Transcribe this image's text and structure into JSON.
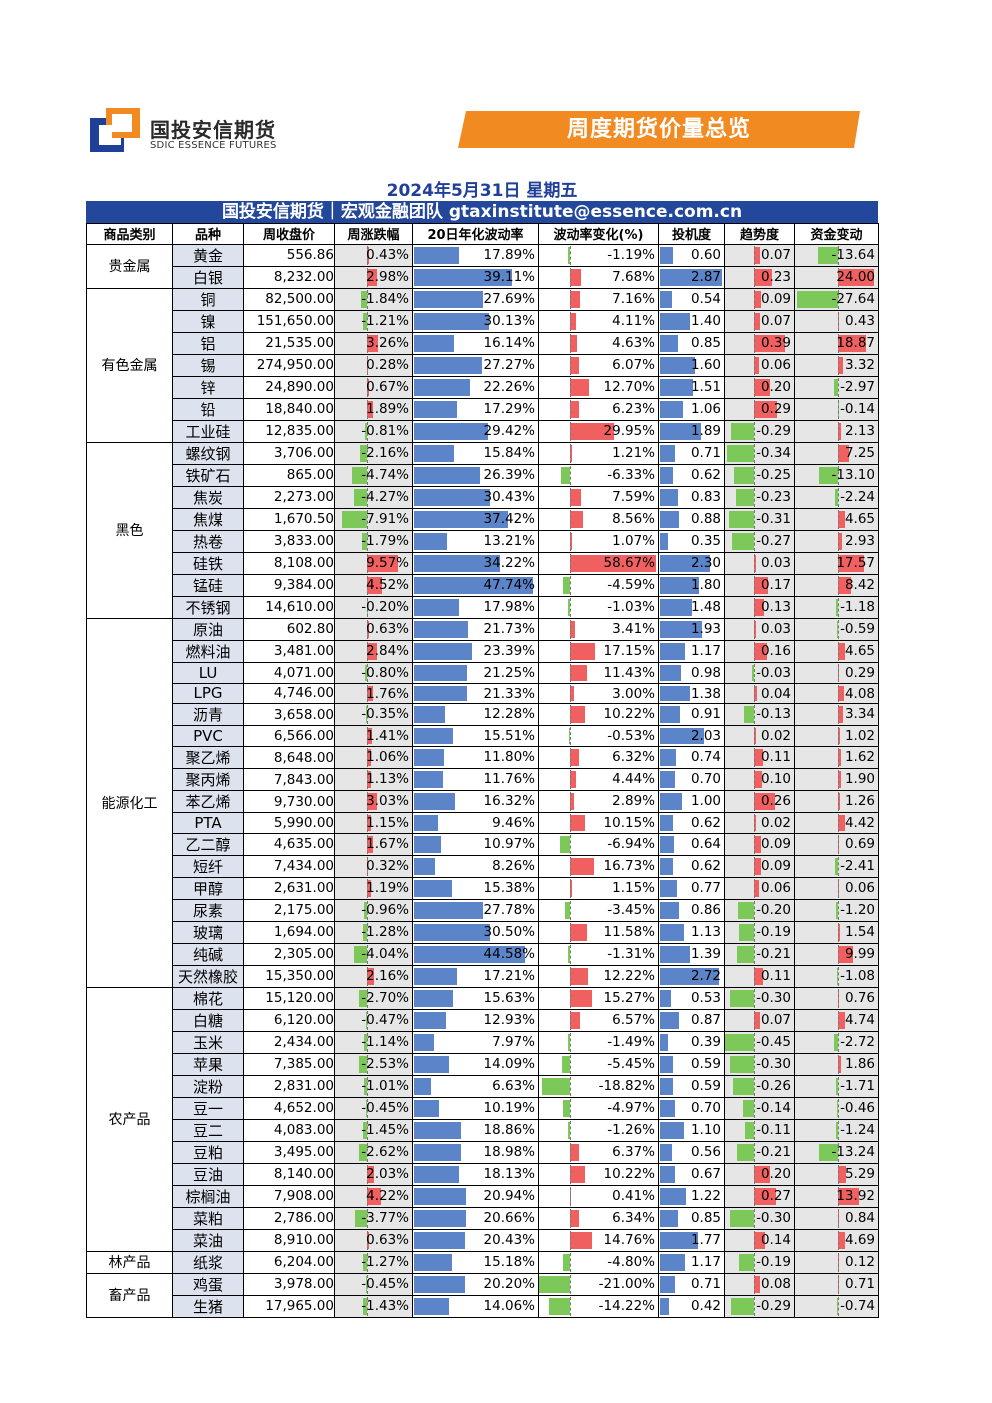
{
  "header": {
    "logo_text": "国投安信期货",
    "logo_sub": "SDIC ESSENCE FUTURES",
    "banner": "周度期货价量总览",
    "date": "2024年5月31日 星期五",
    "team": "国投安信期货｜宏观金融团队 gtaxinstitute@essence.com.cn"
  },
  "colors": {
    "brand_blue": "#23479b",
    "banner_orange": "#f18a21",
    "bar_blue": "#5b85c8",
    "bar_red": "#f06060",
    "bar_green": "#7cc95a"
  },
  "table": {
    "headers": [
      "商品类别",
      "品种",
      "周收盘价",
      "周涨跌幅",
      "20日年化波动率",
      "波动率变化(%)",
      "投机度",
      "趋势度",
      "资金变动"
    ],
    "categories": [
      {
        "name": "贵金属",
        "rows": [
          {
            "name": "黄金",
            "price": "556.86",
            "chg": "0.43%",
            "vol": "17.89%",
            "volchg": "-1.19%",
            "spec": "0.60",
            "trend": "0.07",
            "fund": "-13.64"
          },
          {
            "name": "白银",
            "price": "8,232.00",
            "chg": "2.98%",
            "vol": "39.11%",
            "volchg": "7.68%",
            "spec": "2.87",
            "trend": "0.23",
            "fund": "24.00"
          }
        ]
      },
      {
        "name": "有色金属",
        "rows": [
          {
            "name": "铜",
            "price": "82,500.00",
            "chg": "-1.84%",
            "vol": "27.69%",
            "volchg": "7.16%",
            "spec": "0.54",
            "trend": "0.09",
            "fund": "-27.64"
          },
          {
            "name": "镍",
            "price": "151,650.00",
            "chg": "-1.21%",
            "vol": "30.13%",
            "volchg": "4.11%",
            "spec": "1.40",
            "trend": "0.07",
            "fund": "0.43"
          },
          {
            "name": "铝",
            "price": "21,535.00",
            "chg": "3.26%",
            "vol": "16.14%",
            "volchg": "4.63%",
            "spec": "0.85",
            "trend": "0.39",
            "fund": "18.87"
          },
          {
            "name": "锡",
            "price": "274,950.00",
            "chg": "0.28%",
            "vol": "27.27%",
            "volchg": "6.07%",
            "spec": "1.60",
            "trend": "0.06",
            "fund": "3.32"
          },
          {
            "name": "锌",
            "price": "24,890.00",
            "chg": "0.67%",
            "vol": "22.26%",
            "volchg": "12.70%",
            "spec": "1.51",
            "trend": "0.20",
            "fund": "-2.97"
          },
          {
            "name": "铅",
            "price": "18,840.00",
            "chg": "1.89%",
            "vol": "17.29%",
            "volchg": "6.23%",
            "spec": "1.06",
            "trend": "0.29",
            "fund": "-0.14"
          },
          {
            "name": "工业硅",
            "price": "12,835.00",
            "chg": "-0.81%",
            "vol": "29.42%",
            "volchg": "29.95%",
            "spec": "1.89",
            "trend": "-0.29",
            "fund": "2.13"
          }
        ]
      },
      {
        "name": "黑色",
        "rows": [
          {
            "name": "螺纹钢",
            "price": "3,706.00",
            "chg": "-2.16%",
            "vol": "15.84%",
            "volchg": "1.21%",
            "spec": "0.71",
            "trend": "-0.34",
            "fund": "7.25"
          },
          {
            "name": "铁矿石",
            "price": "865.00",
            "chg": "-4.74%",
            "vol": "26.39%",
            "volchg": "-6.33%",
            "spec": "0.62",
            "trend": "-0.25",
            "fund": "-13.10"
          },
          {
            "name": "焦炭",
            "price": "2,273.00",
            "chg": "-4.27%",
            "vol": "30.43%",
            "volchg": "7.59%",
            "spec": "0.83",
            "trend": "-0.23",
            "fund": "-2.24"
          },
          {
            "name": "焦煤",
            "price": "1,670.50",
            "chg": "-7.91%",
            "vol": "37.42%",
            "volchg": "8.56%",
            "spec": "0.88",
            "trend": "-0.31",
            "fund": "4.65"
          },
          {
            "name": "热卷",
            "price": "3,833.00",
            "chg": "-1.79%",
            "vol": "13.21%",
            "volchg": "1.07%",
            "spec": "0.35",
            "trend": "-0.27",
            "fund": "2.93"
          },
          {
            "name": "硅铁",
            "price": "8,108.00",
            "chg": "9.57%",
            "vol": "34.22%",
            "volchg": "58.67%",
            "spec": "2.30",
            "trend": "0.03",
            "fund": "17.57"
          },
          {
            "name": "锰硅",
            "price": "9,384.00",
            "chg": "4.52%",
            "vol": "47.74%",
            "volchg": "-4.59%",
            "spec": "1.80",
            "trend": "0.17",
            "fund": "8.42"
          },
          {
            "name": "不锈钢",
            "price": "14,610.00",
            "chg": "-0.20%",
            "vol": "17.98%",
            "volchg": "-1.03%",
            "spec": "1.48",
            "trend": "0.13",
            "fund": "-1.18"
          }
        ]
      },
      {
        "name": "能源化工",
        "rows": [
          {
            "name": "原油",
            "price": "602.80",
            "chg": "0.63%",
            "vol": "21.73%",
            "volchg": "3.41%",
            "spec": "1.93",
            "trend": "0.03",
            "fund": "-0.59"
          },
          {
            "name": "燃料油",
            "price": "3,481.00",
            "chg": "2.84%",
            "vol": "23.39%",
            "volchg": "17.15%",
            "spec": "1.17",
            "trend": "0.16",
            "fund": "4.65"
          },
          {
            "name": "LU",
            "price": "4,071.00",
            "chg": "-0.80%",
            "vol": "21.25%",
            "volchg": "11.43%",
            "spec": "0.98",
            "trend": "-0.03",
            "fund": "0.29"
          },
          {
            "name": "LPG",
            "price": "4,746.00",
            "chg": "1.76%",
            "vol": "21.33%",
            "volchg": "3.00%",
            "spec": "1.38",
            "trend": "0.04",
            "fund": "4.08"
          },
          {
            "name": "沥青",
            "price": "3,658.00",
            "chg": "-0.35%",
            "vol": "12.28%",
            "volchg": "10.22%",
            "spec": "0.91",
            "trend": "-0.13",
            "fund": "3.34"
          },
          {
            "name": "PVC",
            "price": "6,566.00",
            "chg": "1.41%",
            "vol": "15.51%",
            "volchg": "-0.53%",
            "spec": "2.03",
            "trend": "0.02",
            "fund": "1.02"
          },
          {
            "name": "聚乙烯",
            "price": "8,648.00",
            "chg": "1.06%",
            "vol": "11.80%",
            "volchg": "6.32%",
            "spec": "0.74",
            "trend": "0.11",
            "fund": "1.62"
          },
          {
            "name": "聚丙烯",
            "price": "7,843.00",
            "chg": "1.13%",
            "vol": "11.76%",
            "volchg": "4.44%",
            "spec": "0.70",
            "trend": "0.10",
            "fund": "1.90"
          },
          {
            "name": "苯乙烯",
            "price": "9,730.00",
            "chg": "3.03%",
            "vol": "16.32%",
            "volchg": "2.89%",
            "spec": "1.00",
            "trend": "0.26",
            "fund": "1.26"
          },
          {
            "name": "PTA",
            "price": "5,990.00",
            "chg": "1.15%",
            "vol": "9.46%",
            "volchg": "10.15%",
            "spec": "0.62",
            "trend": "0.02",
            "fund": "4.42"
          },
          {
            "name": "乙二醇",
            "price": "4,635.00",
            "chg": "1.67%",
            "vol": "10.97%",
            "volchg": "-6.94%",
            "spec": "0.64",
            "trend": "0.09",
            "fund": "0.69"
          },
          {
            "name": "短纤",
            "price": "7,434.00",
            "chg": "0.32%",
            "vol": "8.26%",
            "volchg": "16.73%",
            "spec": "0.62",
            "trend": "0.09",
            "fund": "-2.41"
          },
          {
            "name": "甲醇",
            "price": "2,631.00",
            "chg": "1.19%",
            "vol": "15.38%",
            "volchg": "1.15%",
            "spec": "0.77",
            "trend": "0.06",
            "fund": "0.06"
          },
          {
            "name": "尿素",
            "price": "2,175.00",
            "chg": "-0.96%",
            "vol": "27.78%",
            "volchg": "-3.45%",
            "spec": "0.86",
            "trend": "-0.20",
            "fund": "-1.20"
          },
          {
            "name": "玻璃",
            "price": "1,694.00",
            "chg": "-1.28%",
            "vol": "30.50%",
            "volchg": "11.58%",
            "spec": "1.13",
            "trend": "-0.19",
            "fund": "1.54"
          },
          {
            "name": "纯碱",
            "price": "2,305.00",
            "chg": "-4.04%",
            "vol": "44.58%",
            "volchg": "-1.31%",
            "spec": "1.39",
            "trend": "-0.21",
            "fund": "9.99"
          },
          {
            "name": "天然橡胶",
            "price": "15,350.00",
            "chg": "2.16%",
            "vol": "17.21%",
            "volchg": "12.22%",
            "spec": "2.72",
            "trend": "0.11",
            "fund": "-1.08"
          }
        ]
      },
      {
        "name": "农产品",
        "rows": [
          {
            "name": "棉花",
            "price": "15,120.00",
            "chg": "-2.70%",
            "vol": "15.63%",
            "volchg": "15.27%",
            "spec": "0.53",
            "trend": "-0.30",
            "fund": "0.76"
          },
          {
            "name": "白糖",
            "price": "6,120.00",
            "chg": "-0.47%",
            "vol": "12.93%",
            "volchg": "6.57%",
            "spec": "0.87",
            "trend": "0.07",
            "fund": "4.74"
          },
          {
            "name": "玉米",
            "price": "2,434.00",
            "chg": "-1.14%",
            "vol": "7.97%",
            "volchg": "-1.49%",
            "spec": "0.39",
            "trend": "-0.45",
            "fund": "-2.72"
          },
          {
            "name": "苹果",
            "price": "7,385.00",
            "chg": "-2.53%",
            "vol": "14.09%",
            "volchg": "-5.45%",
            "spec": "0.59",
            "trend": "-0.30",
            "fund": "1.86"
          },
          {
            "name": "淀粉",
            "price": "2,831.00",
            "chg": "-1.01%",
            "vol": "6.63%",
            "volchg": "-18.82%",
            "spec": "0.59",
            "trend": "-0.26",
            "fund": "-1.71"
          },
          {
            "name": "豆一",
            "price": "4,652.00",
            "chg": "-0.45%",
            "vol": "10.19%",
            "volchg": "-4.97%",
            "spec": "0.70",
            "trend": "-0.14",
            "fund": "-0.46"
          },
          {
            "name": "豆二",
            "price": "4,083.00",
            "chg": "-1.45%",
            "vol": "18.86%",
            "volchg": "-1.26%",
            "spec": "1.10",
            "trend": "-0.11",
            "fund": "-1.24"
          },
          {
            "name": "豆粕",
            "price": "3,495.00",
            "chg": "-2.62%",
            "vol": "18.98%",
            "volchg": "6.37%",
            "spec": "0.56",
            "trend": "-0.21",
            "fund": "-13.24"
          },
          {
            "name": "豆油",
            "price": "8,140.00",
            "chg": "2.03%",
            "vol": "18.13%",
            "volchg": "10.22%",
            "spec": "0.67",
            "trend": "0.20",
            "fund": "5.29"
          },
          {
            "name": "棕榈油",
            "price": "7,908.00",
            "chg": "4.22%",
            "vol": "20.94%",
            "volchg": "0.41%",
            "spec": "1.22",
            "trend": "0.27",
            "fund": "13.92"
          },
          {
            "name": "菜粕",
            "price": "2,786.00",
            "chg": "-3.77%",
            "vol": "20.66%",
            "volchg": "6.34%",
            "spec": "0.85",
            "trend": "-0.30",
            "fund": "0.84"
          },
          {
            "name": "菜油",
            "price": "8,910.00",
            "chg": "0.63%",
            "vol": "20.43%",
            "volchg": "14.76%",
            "spec": "1.77",
            "trend": "0.14",
            "fund": "4.69"
          }
        ]
      },
      {
        "name": "林产品",
        "rows": [
          {
            "name": "纸浆",
            "price": "6,204.00",
            "chg": "-1.27%",
            "vol": "15.18%",
            "volchg": "-4.80%",
            "spec": "1.17",
            "trend": "-0.19",
            "fund": "0.12"
          }
        ]
      },
      {
        "name": "畜产品",
        "rows": [
          {
            "name": "鸡蛋",
            "price": "3,978.00",
            "chg": "-0.45%",
            "vol": "20.20%",
            "volchg": "-21.00%",
            "spec": "0.71",
            "trend": "0.08",
            "fund": "0.71"
          },
          {
            "name": "生猪",
            "price": "17,965.00",
            "chg": "-1.43%",
            "vol": "14.06%",
            "volchg": "-14.22%",
            "spec": "0.42",
            "trend": "-0.29",
            "fund": "-0.74"
          }
        ]
      }
    ]
  }
}
